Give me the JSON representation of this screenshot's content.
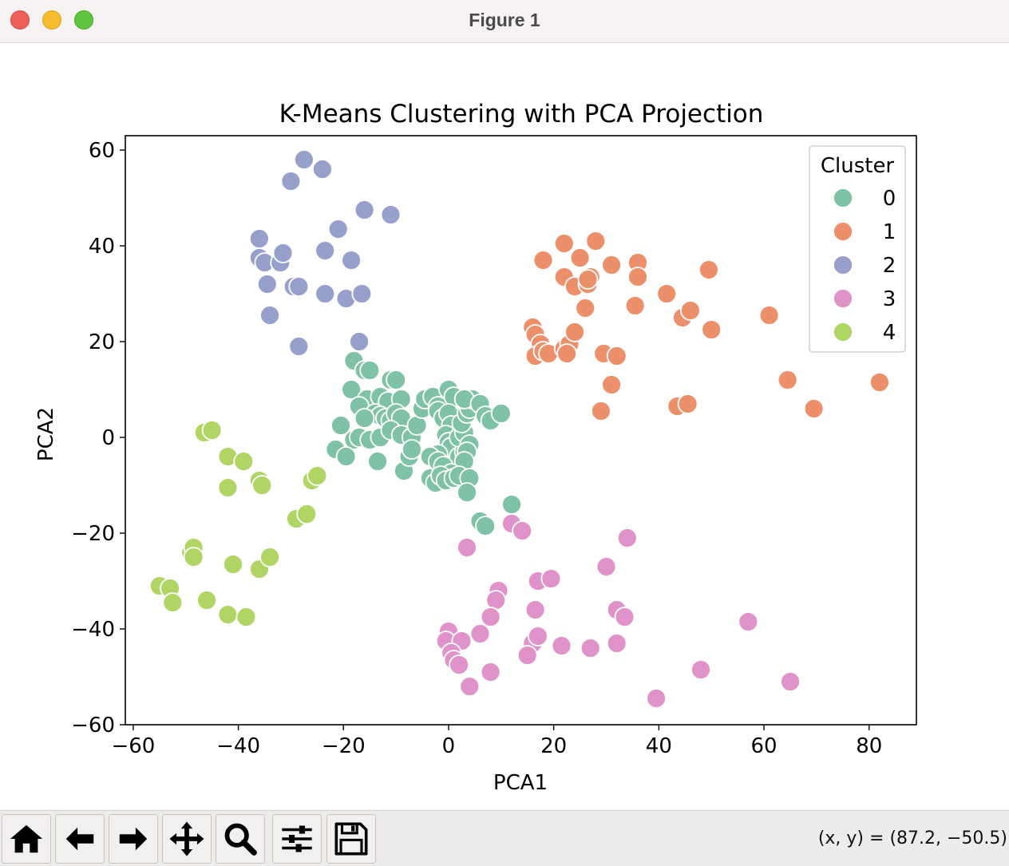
{
  "window": {
    "title": "Figure 1"
  },
  "toolbar": {
    "tools": [
      {
        "name": "home-button",
        "icon": "home-icon"
      },
      {
        "name": "back-button",
        "icon": "arrow-left-icon"
      },
      {
        "name": "forward-button",
        "icon": "arrow-right-icon"
      },
      {
        "name": "pan-button",
        "icon": "move-icon"
      },
      {
        "name": "zoom-button",
        "icon": "magnifier-icon"
      },
      {
        "name": "configure-subplots-button",
        "icon": "sliders-icon"
      },
      {
        "name": "save-button",
        "icon": "floppy-disk-icon"
      }
    ],
    "coordinates": "(x, y) = (87.2, −50.5)"
  },
  "chart_data": {
    "type": "scatter",
    "title": "K-Means Clustering with PCA Projection",
    "xlabel": "PCA1",
    "ylabel": "PCA2",
    "xlim": [
      -61.5,
      89
    ],
    "ylim": [
      -60,
      63
    ],
    "xticks": [
      -60,
      -40,
      -20,
      0,
      20,
      40,
      60,
      80
    ],
    "yticks": [
      -60,
      -40,
      -20,
      0,
      20,
      40,
      60
    ],
    "grid": false,
    "legend": {
      "title": "Cluster",
      "placement": "top-right"
    },
    "series": [
      {
        "name": "0",
        "color": "#7fc2a7",
        "points": [
          [
            -18,
            16
          ],
          [
            -16,
            14
          ],
          [
            -15,
            14
          ],
          [
            -11,
            12
          ],
          [
            -10,
            12
          ],
          [
            -18.5,
            10
          ],
          [
            -15.5,
            8
          ],
          [
            -13,
            8.5
          ],
          [
            -11.5,
            7.5
          ],
          [
            -9,
            8
          ],
          [
            -17,
            6.5
          ],
          [
            -14,
            5
          ],
          [
            -13,
            4.5
          ],
          [
            -12,
            4
          ],
          [
            -11,
            3.5
          ],
          [
            -10,
            5
          ],
          [
            -9,
            4
          ],
          [
            -16,
            4
          ],
          [
            -20.5,
            2.5
          ],
          [
            -18,
            -0.5
          ],
          [
            -17,
            0
          ],
          [
            -15,
            -0.5
          ],
          [
            -13,
            0
          ],
          [
            -11,
            1.5
          ],
          [
            -9,
            0.5
          ],
          [
            -7,
            0
          ],
          [
            -21.5,
            -2.5
          ],
          [
            -19.5,
            -4
          ],
          [
            -13.5,
            -5
          ],
          [
            -8.5,
            -7
          ],
          [
            -7.5,
            -4
          ],
          [
            -7,
            -2.5
          ],
          [
            -6,
            2.5
          ],
          [
            -5,
            6
          ],
          [
            -4.5,
            8
          ],
          [
            -3,
            8.5
          ],
          [
            -2,
            6.5
          ],
          [
            -2,
            5.5
          ],
          [
            -1,
            4
          ],
          [
            0,
            10
          ],
          [
            1,
            8.5
          ],
          [
            0,
            5
          ],
          [
            0.5,
            2.5
          ],
          [
            -0.5,
            0.5
          ],
          [
            0,
            -1
          ],
          [
            0.5,
            -2
          ],
          [
            -2,
            -3.5
          ],
          [
            -3.5,
            -4
          ],
          [
            -2,
            -5
          ],
          [
            2,
            -4
          ],
          [
            3,
            -3
          ],
          [
            2,
            0
          ],
          [
            3,
            1
          ],
          [
            2.5,
            3
          ],
          [
            3.5,
            5
          ],
          [
            4,
            6
          ],
          [
            4.5,
            8
          ],
          [
            3,
            8
          ],
          [
            6,
            7
          ],
          [
            7,
            4.5
          ],
          [
            8,
            3.5
          ],
          [
            10,
            5
          ],
          [
            4,
            -1.5
          ],
          [
            3.5,
            -3
          ],
          [
            3,
            -5
          ],
          [
            -1,
            -6
          ],
          [
            0.5,
            -7.5
          ],
          [
            -3.5,
            -8.5
          ],
          [
            -2.5,
            -9.5
          ],
          [
            -1.5,
            -8
          ],
          [
            -0.5,
            -9
          ],
          [
            1,
            -8.5
          ],
          [
            2,
            -8
          ],
          [
            4,
            -8.5
          ],
          [
            3.5,
            -11.5
          ],
          [
            6,
            -17.5
          ],
          [
            7,
            -18.5
          ],
          [
            12,
            -14
          ]
        ]
      },
      {
        "name": "1",
        "color": "#ec906b",
        "points": [
          [
            22,
            40.5
          ],
          [
            28,
            41
          ],
          [
            18,
            37
          ],
          [
            25,
            37.5
          ],
          [
            27,
            33.5
          ],
          [
            31,
            36
          ],
          [
            36,
            36.5
          ],
          [
            36,
            33.5
          ],
          [
            22,
            33.5
          ],
          [
            24,
            31.5
          ],
          [
            26.5,
            32
          ],
          [
            26.5,
            33
          ],
          [
            26,
            27
          ],
          [
            35.5,
            27.5
          ],
          [
            41.5,
            30
          ],
          [
            44.5,
            25
          ],
          [
            46,
            26.5
          ],
          [
            50,
            22.5
          ],
          [
            49.5,
            35
          ],
          [
            61,
            25.5
          ],
          [
            16,
            23
          ],
          [
            16.5,
            21.5
          ],
          [
            17.5,
            19.5
          ],
          [
            16.5,
            17
          ],
          [
            18,
            18
          ],
          [
            19,
            17.5
          ],
          [
            22,
            18.5
          ],
          [
            23,
            19.5
          ],
          [
            24,
            22
          ],
          [
            22.5,
            17.5
          ],
          [
            29.5,
            17.5
          ],
          [
            32,
            17
          ],
          [
            31,
            11
          ],
          [
            29,
            5.5
          ],
          [
            43.5,
            6.5
          ],
          [
            45.5,
            7
          ],
          [
            64.5,
            12
          ],
          [
            69.5,
            6
          ],
          [
            82,
            11.5
          ]
        ]
      },
      {
        "name": "2",
        "color": "#97a0cb",
        "points": [
          [
            -27.5,
            58
          ],
          [
            -30,
            53.5
          ],
          [
            -24,
            56
          ],
          [
            -16,
            47.5
          ],
          [
            -11,
            46.5
          ],
          [
            -21,
            43.5
          ],
          [
            -36,
            41.5
          ],
          [
            -23.5,
            39
          ],
          [
            -18.5,
            37
          ],
          [
            -36,
            37.5
          ],
          [
            -35,
            36.5
          ],
          [
            -32,
            36.5
          ],
          [
            -31.5,
            38.5
          ],
          [
            -34.5,
            32
          ],
          [
            -29.5,
            31.5
          ],
          [
            -28.5,
            31.5
          ],
          [
            -23.5,
            30
          ],
          [
            -19.5,
            29
          ],
          [
            -16.5,
            30
          ],
          [
            -34,
            25.5
          ],
          [
            -28.5,
            19
          ],
          [
            -17,
            20
          ]
        ]
      },
      {
        "name": "3",
        "color": "#df93c8",
        "points": [
          [
            3.5,
            -23
          ],
          [
            12,
            -18
          ],
          [
            14,
            -19.5
          ],
          [
            34,
            -21
          ],
          [
            9.5,
            -32
          ],
          [
            9,
            -34
          ],
          [
            17,
            -30
          ],
          [
            19.5,
            -29.5
          ],
          [
            30,
            -27
          ],
          [
            8,
            -37.5
          ],
          [
            16.5,
            -36
          ],
          [
            32,
            -36
          ],
          [
            33.5,
            -37.5
          ],
          [
            57,
            -38.5
          ],
          [
            0,
            -40.5
          ],
          [
            -0.5,
            -42.5
          ],
          [
            2.5,
            -42.5
          ],
          [
            6,
            -41
          ],
          [
            16,
            -43
          ],
          [
            17,
            -41.5
          ],
          [
            21.5,
            -43.5
          ],
          [
            27,
            -44
          ],
          [
            32,
            -43
          ],
          [
            0.5,
            -45
          ],
          [
            1,
            -46.5
          ],
          [
            2,
            -47.5
          ],
          [
            15,
            -45.5
          ],
          [
            4,
            -52
          ],
          [
            8,
            -49
          ],
          [
            48,
            -48.5
          ],
          [
            65,
            -51
          ],
          [
            39.5,
            -54.5
          ]
        ]
      },
      {
        "name": "4",
        "color": "#b0d564",
        "points": [
          [
            -46.5,
            1
          ],
          [
            -45,
            1.5
          ],
          [
            -42,
            -4
          ],
          [
            -39,
            -5
          ],
          [
            -42,
            -10.5
          ],
          [
            -36,
            -9
          ],
          [
            -35.5,
            -10
          ],
          [
            -26,
            -9
          ],
          [
            -25,
            -8
          ],
          [
            -29,
            -17
          ],
          [
            -27,
            -16
          ],
          [
            -49,
            -24
          ],
          [
            -48.5,
            -23
          ],
          [
            -48.5,
            -25
          ],
          [
            -41,
            -26.5
          ],
          [
            -36,
            -27.5
          ],
          [
            -34,
            -25
          ],
          [
            -55,
            -31
          ],
          [
            -53,
            -31.5
          ],
          [
            -52.5,
            -34.5
          ],
          [
            -46,
            -34
          ],
          [
            -42,
            -37
          ],
          [
            -38.5,
            -37.5
          ]
        ]
      }
    ]
  }
}
